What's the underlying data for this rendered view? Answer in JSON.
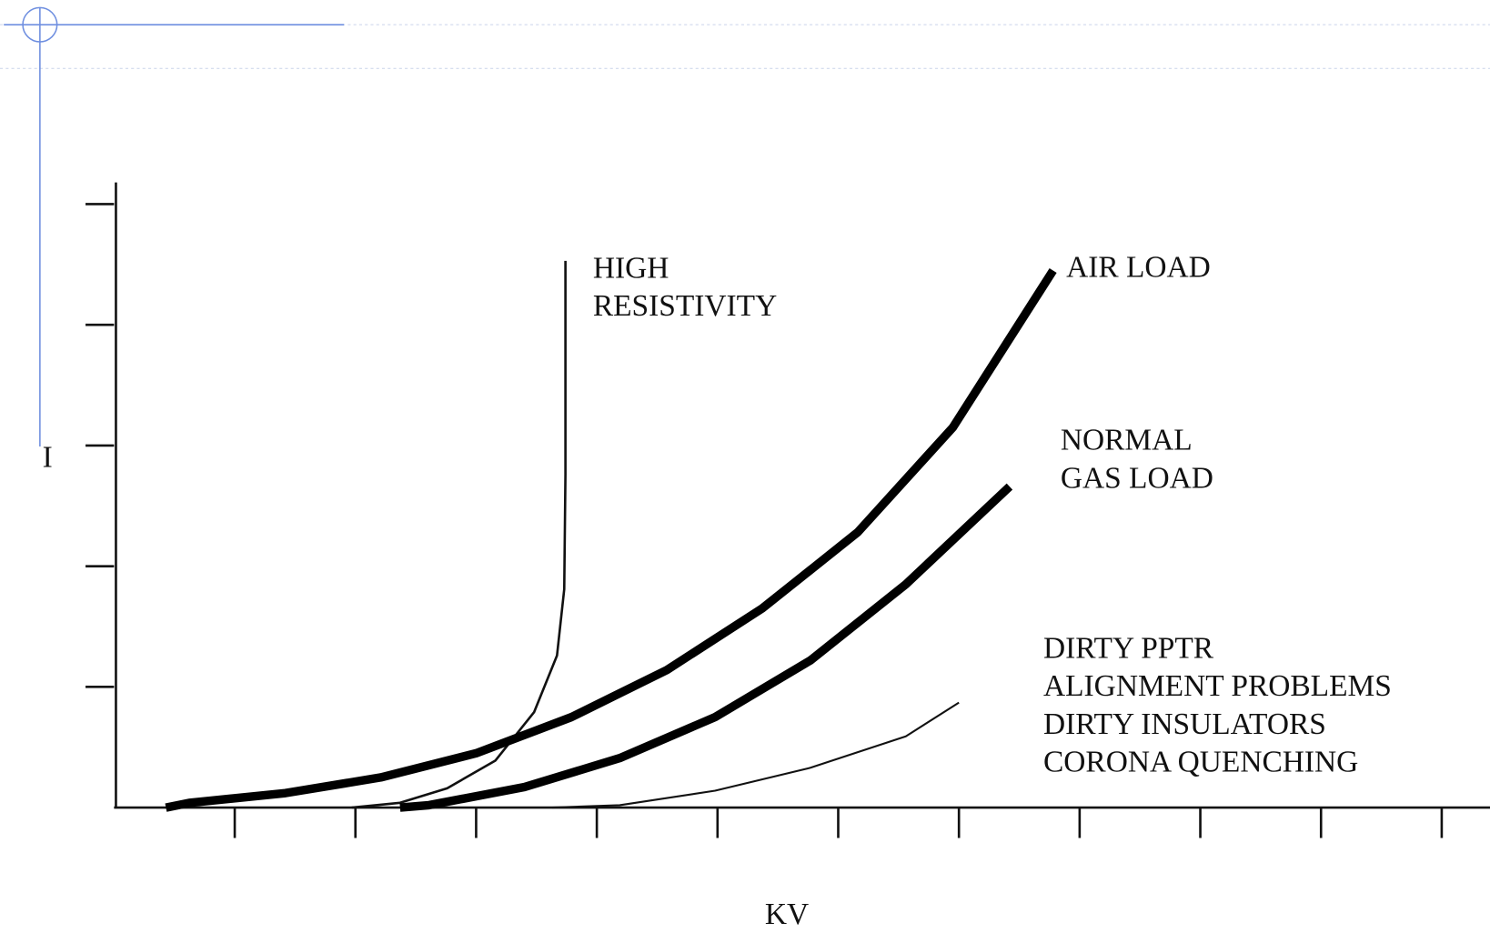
{
  "chart_data": {
    "type": "line",
    "xlabel": "KV",
    "ylabel": "I",
    "xlim": [
      0,
      11.4
    ],
    "ylim": [
      0,
      5.18
    ],
    "xticks": [
      1,
      2,
      3,
      4,
      5,
      6,
      7,
      8,
      9,
      10,
      11
    ],
    "yticks": [
      1,
      2,
      3,
      4,
      5
    ],
    "series": [
      {
        "name": [
          "HIGH",
          "RESISTIVITY"
        ],
        "color": "#111111",
        "line_width": 2.5,
        "x": [
          1.97,
          2.37,
          2.76,
          3.16,
          3.48,
          3.67,
          3.73,
          3.74,
          3.74
        ],
        "values": [
          0,
          0.04,
          0.16,
          0.39,
          0.79,
          1.26,
          1.81,
          2.76,
          4.53
        ]
      },
      {
        "name": [
          "AIR LOAD"
        ],
        "color": "#000000",
        "line_width": 9,
        "x": [
          0.43,
          0.63,
          1.42,
          2.21,
          3.0,
          3.79,
          4.58,
          5.37,
          6.16,
          6.95,
          7.78
        ],
        "values": [
          0,
          0.04,
          0.12,
          0.25,
          0.45,
          0.75,
          1.14,
          1.65,
          2.28,
          3.15,
          4.45
        ]
      },
      {
        "name": [
          "NORMAL",
          "GAS LOAD"
        ],
        "color": "#000000",
        "line_width": 9,
        "x": [
          2.37,
          2.61,
          3.4,
          4.19,
          4.98,
          5.77,
          6.56,
          7.42
        ],
        "values": [
          0,
          0.02,
          0.17,
          0.41,
          0.75,
          1.22,
          1.85,
          2.66
        ]
      },
      {
        "name": [
          "DIRTY PPTR",
          "ALIGNMENT PROBLEMS",
          "DIRTY INSULATORS",
          "CORONA QUENCHING"
        ],
        "color": "#111111",
        "line_width": 2,
        "x": [
          3.63,
          4.19,
          4.98,
          5.77,
          6.56,
          7.0
        ],
        "values": [
          0,
          0.02,
          0.14,
          0.33,
          0.59,
          0.87
        ]
      }
    ]
  }
}
